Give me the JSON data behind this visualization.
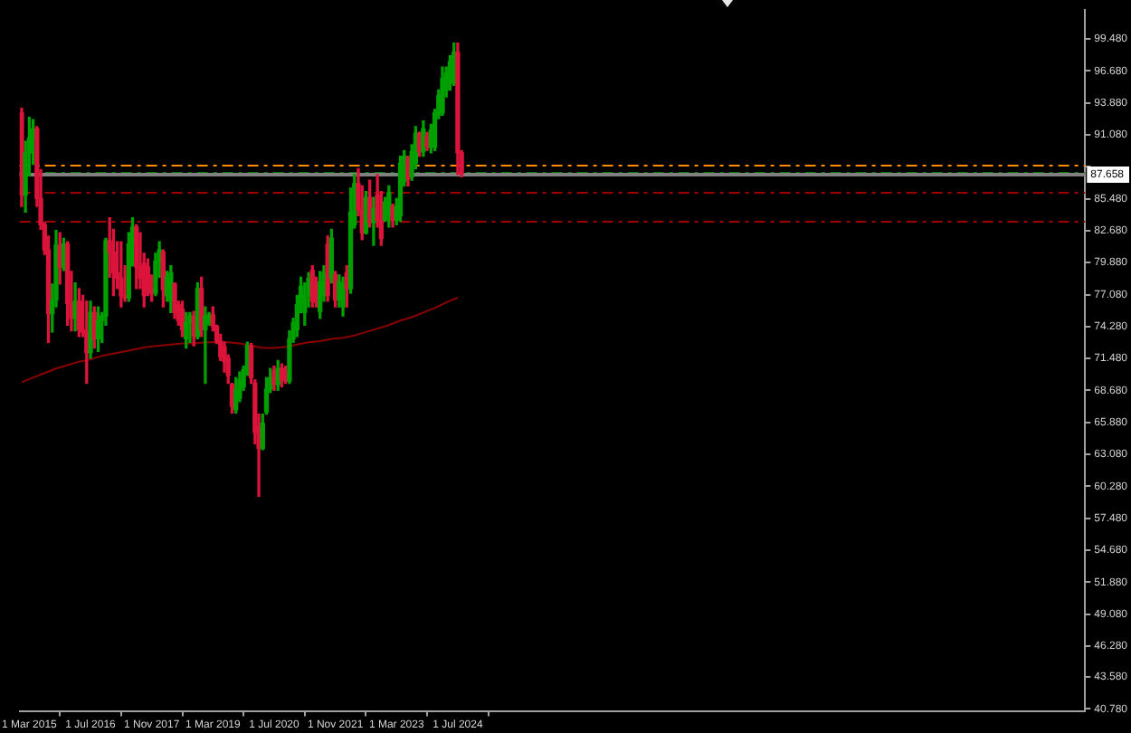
{
  "chart_data": {
    "type": "candlestick",
    "x": [
      "2015-01",
      "2015-02",
      "2015-03",
      "2015-04",
      "2015-05",
      "2015-06",
      "2015-07",
      "2015-08",
      "2015-09",
      "2015-10",
      "2015-11",
      "2015-12",
      "2016-01",
      "2016-02",
      "2016-03",
      "2016-04",
      "2016-05",
      "2016-06",
      "2016-07",
      "2016-08",
      "2016-09",
      "2016-10",
      "2016-11",
      "2016-12",
      "2017-01",
      "2017-02",
      "2017-03",
      "2017-04",
      "2017-05",
      "2017-06",
      "2017-07",
      "2017-08",
      "2017-09",
      "2017-10",
      "2017-11",
      "2017-12",
      "2018-01",
      "2018-02",
      "2018-03",
      "2018-04",
      "2018-05",
      "2018-06",
      "2018-07",
      "2018-08",
      "2018-09",
      "2018-10",
      "2018-11",
      "2018-12",
      "2019-01",
      "2019-02",
      "2019-03",
      "2019-04",
      "2019-05",
      "2019-06",
      "2019-07",
      "2019-08",
      "2019-09",
      "2019-10",
      "2019-11",
      "2019-12",
      "2020-01",
      "2020-02",
      "2020-03",
      "2020-04",
      "2020-05",
      "2020-06",
      "2020-07",
      "2020-08",
      "2020-09",
      "2020-10",
      "2020-11",
      "2020-12",
      "2021-01",
      "2021-02",
      "2021-03",
      "2021-04",
      "2021-05",
      "2021-06",
      "2021-07",
      "2021-08",
      "2021-09",
      "2021-10",
      "2021-11",
      "2021-12",
      "2022-01",
      "2022-02",
      "2022-03",
      "2022-04",
      "2022-05",
      "2022-06",
      "2022-07",
      "2022-08",
      "2022-09",
      "2022-10",
      "2022-11",
      "2022-12",
      "2023-01",
      "2023-02",
      "2023-03",
      "2023-04",
      "2023-05",
      "2023-06",
      "2023-07",
      "2023-08",
      "2023-09",
      "2023-10",
      "2023-11",
      "2023-12",
      "2024-01",
      "2024-02",
      "2024-03",
      "2024-04",
      "2024-05",
      "2024-06",
      "2024-07",
      "2024-08"
    ],
    "ohlc": [
      [
        93.0,
        93.4,
        84.8,
        85.8
      ],
      [
        85.8,
        90.5,
        84.3,
        89.5
      ],
      [
        89.5,
        92.6,
        87.5,
        90.8
      ],
      [
        90.8,
        92.4,
        88.5,
        91.6
      ],
      [
        91.6,
        91.8,
        84.8,
        85.5
      ],
      [
        85.5,
        88.0,
        82.8,
        83.2
      ],
      [
        83.2,
        83.4,
        80.6,
        81.0
      ],
      [
        81.0,
        82.2,
        72.9,
        75.4
      ],
      [
        75.4,
        78.0,
        73.8,
        76.6
      ],
      [
        76.6,
        82.7,
        76.0,
        81.4
      ],
      [
        81.4,
        82.5,
        78.0,
        79.5
      ],
      [
        79.5,
        82.0,
        79.2,
        81.5
      ],
      [
        81.5,
        81.7,
        74.4,
        76.3
      ],
      [
        76.3,
        79.1,
        73.9,
        75.0
      ],
      [
        75.0,
        78.1,
        73.9,
        76.5
      ],
      [
        76.5,
        77.6,
        73.4,
        74.0
      ],
      [
        74.0,
        77.0,
        73.4,
        73.8
      ],
      [
        73.8,
        76.5,
        69.3,
        72.0
      ],
      [
        72.0,
        76.5,
        71.5,
        75.5
      ],
      [
        75.5,
        76.0,
        72.4,
        73.2
      ],
      [
        73.2,
        76.0,
        72.1,
        74.8
      ],
      [
        74.8,
        75.5,
        72.9,
        75.2
      ],
      [
        75.2,
        82.0,
        74.4,
        81.8
      ],
      [
        81.8,
        83.8,
        78.6,
        80.8
      ],
      [
        80.8,
        82.8,
        77.0,
        79.0
      ],
      [
        79.0,
        81.7,
        77.6,
        78.5
      ],
      [
        78.5,
        81.7,
        76.0,
        77.0
      ],
      [
        77.0,
        79.6,
        76.5,
        76.8
      ],
      [
        76.8,
        82.5,
        76.5,
        81.5
      ],
      [
        81.5,
        83.8,
        79.6,
        83.0
      ],
      [
        83.0,
        83.2,
        77.6,
        79.5
      ],
      [
        79.5,
        82.5,
        77.6,
        78.5
      ],
      [
        79.8,
        80.7,
        76.0,
        77.0
      ],
      [
        79.5,
        80.2,
        77.0,
        77.6
      ],
      [
        77.6,
        78.8,
        76.5,
        77.2
      ],
      [
        77.2,
        80.7,
        77.0,
        80.0
      ],
      [
        80.0,
        81.7,
        78.6,
        81.0
      ],
      [
        80.8,
        81.0,
        76.0,
        77.5
      ],
      [
        77.0,
        79.1,
        76.5,
        78.6
      ],
      [
        76.5,
        79.6,
        75.5,
        79.0
      ],
      [
        78.0,
        78.1,
        75.0,
        75.5
      ],
      [
        76.2,
        76.5,
        74.4,
        74.8
      ],
      [
        75.8,
        76.5,
        73.4,
        74.0
      ],
      [
        73.2,
        75.5,
        72.4,
        74.6
      ],
      [
        74.6,
        75.5,
        72.9,
        75.2
      ],
      [
        75.2,
        75.6,
        72.6,
        73.4
      ],
      [
        73.4,
        78.1,
        73.2,
        77.6
      ],
      [
        77.6,
        78.6,
        73.4,
        74.0
      ],
      [
        74.0,
        76.0,
        69.3,
        75.2
      ],
      [
        74.6,
        75.5,
        74.4,
        75.3
      ],
      [
        75.3,
        76.0,
        73.9,
        74.3
      ],
      [
        74.3,
        74.4,
        72.8,
        73.0
      ],
      [
        73.0,
        73.6,
        71.3,
        71.6
      ],
      [
        72.5,
        72.9,
        70.3,
        71.2
      ],
      [
        71.5,
        71.8,
        69.3,
        70.0
      ],
      [
        69.2,
        69.3,
        66.7,
        67.3
      ],
      [
        67.0,
        69.8,
        66.7,
        68.7
      ],
      [
        68.0,
        70.3,
        67.7,
        69.6
      ],
      [
        69.0,
        70.8,
        68.7,
        70.5
      ],
      [
        70.5,
        72.9,
        70.0,
        72.6
      ],
      [
        72.6,
        72.8,
        69.3,
        69.8
      ],
      [
        69.3,
        69.6,
        64.0,
        65.0
      ],
      [
        65.5,
        66.6,
        59.4,
        63.6
      ],
      [
        63.6,
        66.6,
        63.5,
        65.8
      ],
      [
        66.8,
        69.8,
        66.6,
        68.8
      ],
      [
        68.8,
        70.6,
        68.5,
        69.8
      ],
      [
        70.4,
        70.8,
        68.7,
        69.2
      ],
      [
        69.2,
        71.3,
        68.7,
        70.6
      ],
      [
        70.6,
        71.0,
        69.0,
        69.6
      ],
      [
        70.2,
        70.8,
        69.3,
        69.5
      ],
      [
        69.5,
        73.9,
        69.3,
        73.2
      ],
      [
        73.2,
        75.0,
        72.9,
        74.6
      ],
      [
        74.0,
        77.0,
        73.4,
        76.2
      ],
      [
        76.2,
        78.6,
        75.5,
        77.8
      ],
      [
        75.5,
        78.1,
        74.4,
        77.0
      ],
      [
        77.0,
        79.0,
        76.0,
        78.5
      ],
      [
        79.2,
        79.6,
        76.0,
        76.5
      ],
      [
        77.8,
        78.6,
        76.0,
        76.4
      ],
      [
        75.6,
        79.1,
        75.0,
        78.2
      ],
      [
        77.0,
        79.6,
        76.5,
        79.0
      ],
      [
        81.5,
        82.2,
        76.5,
        77.0
      ],
      [
        78.5,
        82.8,
        78.1,
        82.0
      ],
      [
        78.8,
        79.1,
        76.0,
        76.6
      ],
      [
        76.6,
        78.8,
        76.0,
        78.2
      ],
      [
        76.0,
        78.6,
        75.2,
        78.0
      ],
      [
        79.0,
        79.6,
        76.0,
        77.6
      ],
      [
        77.6,
        86.4,
        77.2,
        84.3
      ],
      [
        83.2,
        87.6,
        82.9,
        86.8
      ],
      [
        86.8,
        88.1,
        84.0,
        84.5
      ],
      [
        84.5,
        86.6,
        81.9,
        82.5
      ],
      [
        82.5,
        86.1,
        82.4,
        85.6
      ],
      [
        85.6,
        87.1,
        83.0,
        83.4
      ],
      [
        83.4,
        85.6,
        81.4,
        84.6
      ],
      [
        85.8,
        87.6,
        83.0,
        83.6
      ],
      [
        83.6,
        86.1,
        81.4,
        82.0
      ],
      [
        83.6,
        85.6,
        83.5,
        85.2
      ],
      [
        84.0,
        86.6,
        83.0,
        86.0
      ],
      [
        84.8,
        85.0,
        83.0,
        83.6
      ],
      [
        83.6,
        85.5,
        83.2,
        84.8
      ],
      [
        84.0,
        89.2,
        83.5,
        88.6
      ],
      [
        87.0,
        89.7,
        86.6,
        89.2
      ],
      [
        89.0,
        89.2,
        86.6,
        87.2
      ],
      [
        87.4,
        90.2,
        87.1,
        89.6
      ],
      [
        88.6,
        91.8,
        88.1,
        91.2
      ],
      [
        91.2,
        91.3,
        89.2,
        89.6
      ],
      [
        89.6,
        92.3,
        89.2,
        91.6
      ],
      [
        91.0,
        91.3,
        89.7,
        90.0
      ],
      [
        90.0,
        92.0,
        89.5,
        91.5
      ],
      [
        90.0,
        93.3,
        89.7,
        93.0
      ],
      [
        92.8,
        95.0,
        92.5,
        94.5
      ],
      [
        93.0,
        97.0,
        92.8,
        96.0
      ],
      [
        95.0,
        97.0,
        94.4,
        96.5
      ],
      [
        96.0,
        98.0,
        95.0,
        97.5
      ],
      [
        95.6,
        99.1,
        95.4,
        98.3
      ],
      [
        98.3,
        99.1,
        87.6,
        89.5
      ],
      [
        89.5,
        89.7,
        87.4,
        87.66
      ]
    ],
    "colors": [
      "#dc143c",
      "#00a000",
      "#00a000",
      "#00a000",
      "#dc143c",
      "#dc143c",
      "#dc143c",
      "#dc143c",
      "#00a000",
      "#00a000",
      "#dc143c",
      "#00a000",
      "#dc143c",
      "#dc143c",
      "#00a000",
      "#dc143c",
      "#dc143c",
      "#dc143c",
      "#00a000",
      "#dc143c",
      "#00a000",
      "#00a000",
      "#00a000",
      "#dc143c",
      "#dc143c",
      "#dc143c",
      "#dc143c",
      "#dc143c",
      "#00a000",
      "#00a000",
      "#dc143c",
      "#dc143c",
      "#dc143c",
      "#dc143c",
      "#dc143c",
      "#00a000",
      "#00a000",
      "#dc143c",
      "#00a000",
      "#00a000",
      "#dc143c",
      "#dc143c",
      "#dc143c",
      "#00a000",
      "#00a000",
      "#dc143c",
      "#00a000",
      "#dc143c",
      "#00a000",
      "#00a000",
      "#dc143c",
      "#dc143c",
      "#dc143c",
      "#dc143c",
      "#dc143c",
      "#dc143c",
      "#00a000",
      "#00a000",
      "#00a000",
      "#00a000",
      "#dc143c",
      "#dc143c",
      "#dc143c",
      "#00a000",
      "#00a000",
      "#00a000",
      "#dc143c",
      "#00a000",
      "#dc143c",
      "#dc143c",
      "#00a000",
      "#00a000",
      "#00a000",
      "#00a000",
      "#00a000",
      "#00a000",
      "#dc143c",
      "#dc143c",
      "#00a000",
      "#00a000",
      "#dc143c",
      "#00a000",
      "#dc143c",
      "#00a000",
      "#00a000",
      "#dc143c",
      "#00a000",
      "#00a000",
      "#dc143c",
      "#dc143c",
      "#00a000",
      "#dc143c",
      "#00a000",
      "#dc143c",
      "#dc143c",
      "#00a000",
      "#00a000",
      "#dc143c",
      "#00a000",
      "#00a000",
      "#00a000",
      "#dc143c",
      "#00a000",
      "#00a000",
      "#dc143c",
      "#00a000",
      "#dc143c",
      "#00a000",
      "#00a000",
      "#00a000",
      "#00a000",
      "#00a000",
      "#00a000",
      "#00a000",
      "#dc143c",
      "#dc143c"
    ],
    "series": [
      {
        "type": "line",
        "color": "#8b0000",
        "x": [
          "2015-01",
          "2015-04",
          "2015-07",
          "2015-10",
          "2016-01",
          "2016-04",
          "2016-07",
          "2016-10",
          "2017-01",
          "2017-04",
          "2017-07",
          "2017-10",
          "2018-01",
          "2018-04",
          "2018-07",
          "2018-10",
          "2019-01",
          "2019-04",
          "2019-07",
          "2019-10",
          "2020-01",
          "2020-04",
          "2020-07",
          "2020-10",
          "2021-01",
          "2021-04",
          "2021-07",
          "2021-10",
          "2022-01",
          "2022-04",
          "2022-07",
          "2022-10",
          "2023-01",
          "2023-04",
          "2023-07",
          "2023-10",
          "2024-01",
          "2024-04",
          "2024-07"
        ],
        "values": [
          69.4,
          69.8,
          70.2,
          70.6,
          70.9,
          71.2,
          71.4,
          71.7,
          71.9,
          72.1,
          72.3,
          72.5,
          72.6,
          72.7,
          72.8,
          72.8,
          72.9,
          72.9,
          72.9,
          72.8,
          72.6,
          72.4,
          72.4,
          72.5,
          72.7,
          72.9,
          73.0,
          73.2,
          73.3,
          73.5,
          73.8,
          74.1,
          74.4,
          74.8,
          75.1,
          75.5,
          75.9,
          76.4,
          76.8
        ]
      }
    ],
    "xlim": [
      "2014-12-15",
      "2038-03"
    ],
    "xticks": [
      {
        "value": "2015-03",
        "label": "1 Mar 2015"
      },
      {
        "value": "2016-07",
        "label": "1 Jul 2016"
      },
      {
        "value": "2017-11",
        "label": "1 Nov 2017"
      },
      {
        "value": "2019-03",
        "label": "1 Mar 2019"
      },
      {
        "value": "2020-07",
        "label": "1 Jul 2020"
      },
      {
        "value": "2021-11",
        "label": "1 Nov 2021"
      },
      {
        "value": "2023-03",
        "label": "1 Mar 2023"
      },
      {
        "value": "2024-07",
        "label": "1 Jul 2024"
      }
    ],
    "ylim": [
      40.6,
      102.0
    ],
    "yticks": [
      {
        "value": 99.48,
        "label": "99.480"
      },
      {
        "value": 96.68,
        "label": "96.680"
      },
      {
        "value": 93.88,
        "label": "93.880"
      },
      {
        "value": 91.08,
        "label": "91.080"
      },
      {
        "value": 88.28,
        "label": null
      },
      {
        "value": 85.48,
        "label": "85.480"
      },
      {
        "value": 82.68,
        "label": "82.680"
      },
      {
        "value": 79.88,
        "label": "79.880"
      },
      {
        "value": 77.08,
        "label": "77.080"
      },
      {
        "value": 74.28,
        "label": "74.280"
      },
      {
        "value": 71.48,
        "label": "71.480"
      },
      {
        "value": 68.68,
        "label": "68.680"
      },
      {
        "value": 65.88,
        "label": "65.880"
      },
      {
        "value": 63.08,
        "label": "63.080"
      },
      {
        "value": 60.28,
        "label": "60.280"
      },
      {
        "value": 57.48,
        "label": "57.480"
      },
      {
        "value": 54.68,
        "label": "54.680"
      },
      {
        "value": 51.88,
        "label": "51.880"
      },
      {
        "value": 49.08,
        "label": "49.080"
      },
      {
        "value": 46.28,
        "label": "46.280"
      },
      {
        "value": 43.58,
        "label": "43.580"
      },
      {
        "value": 40.78,
        "label": "40.780"
      }
    ],
    "ref_lines": [
      {
        "axis": "y",
        "value": 88.47,
        "color": "#ff8c00",
        "line_style": "dashed"
      },
      {
        "axis": "y",
        "value": 87.85,
        "color": "#008000",
        "line_style": "dashed"
      },
      {
        "axis": "y",
        "value": 87.658,
        "label": "87.658",
        "color": "#808080",
        "line_style": "solid"
      },
      {
        "axis": "y",
        "value": 86.0,
        "color": "#a00000",
        "line_style": "dashed"
      },
      {
        "axis": "y",
        "value": 83.6,
        "color": "#a00000",
        "line_style": "dashed"
      }
    ]
  }
}
